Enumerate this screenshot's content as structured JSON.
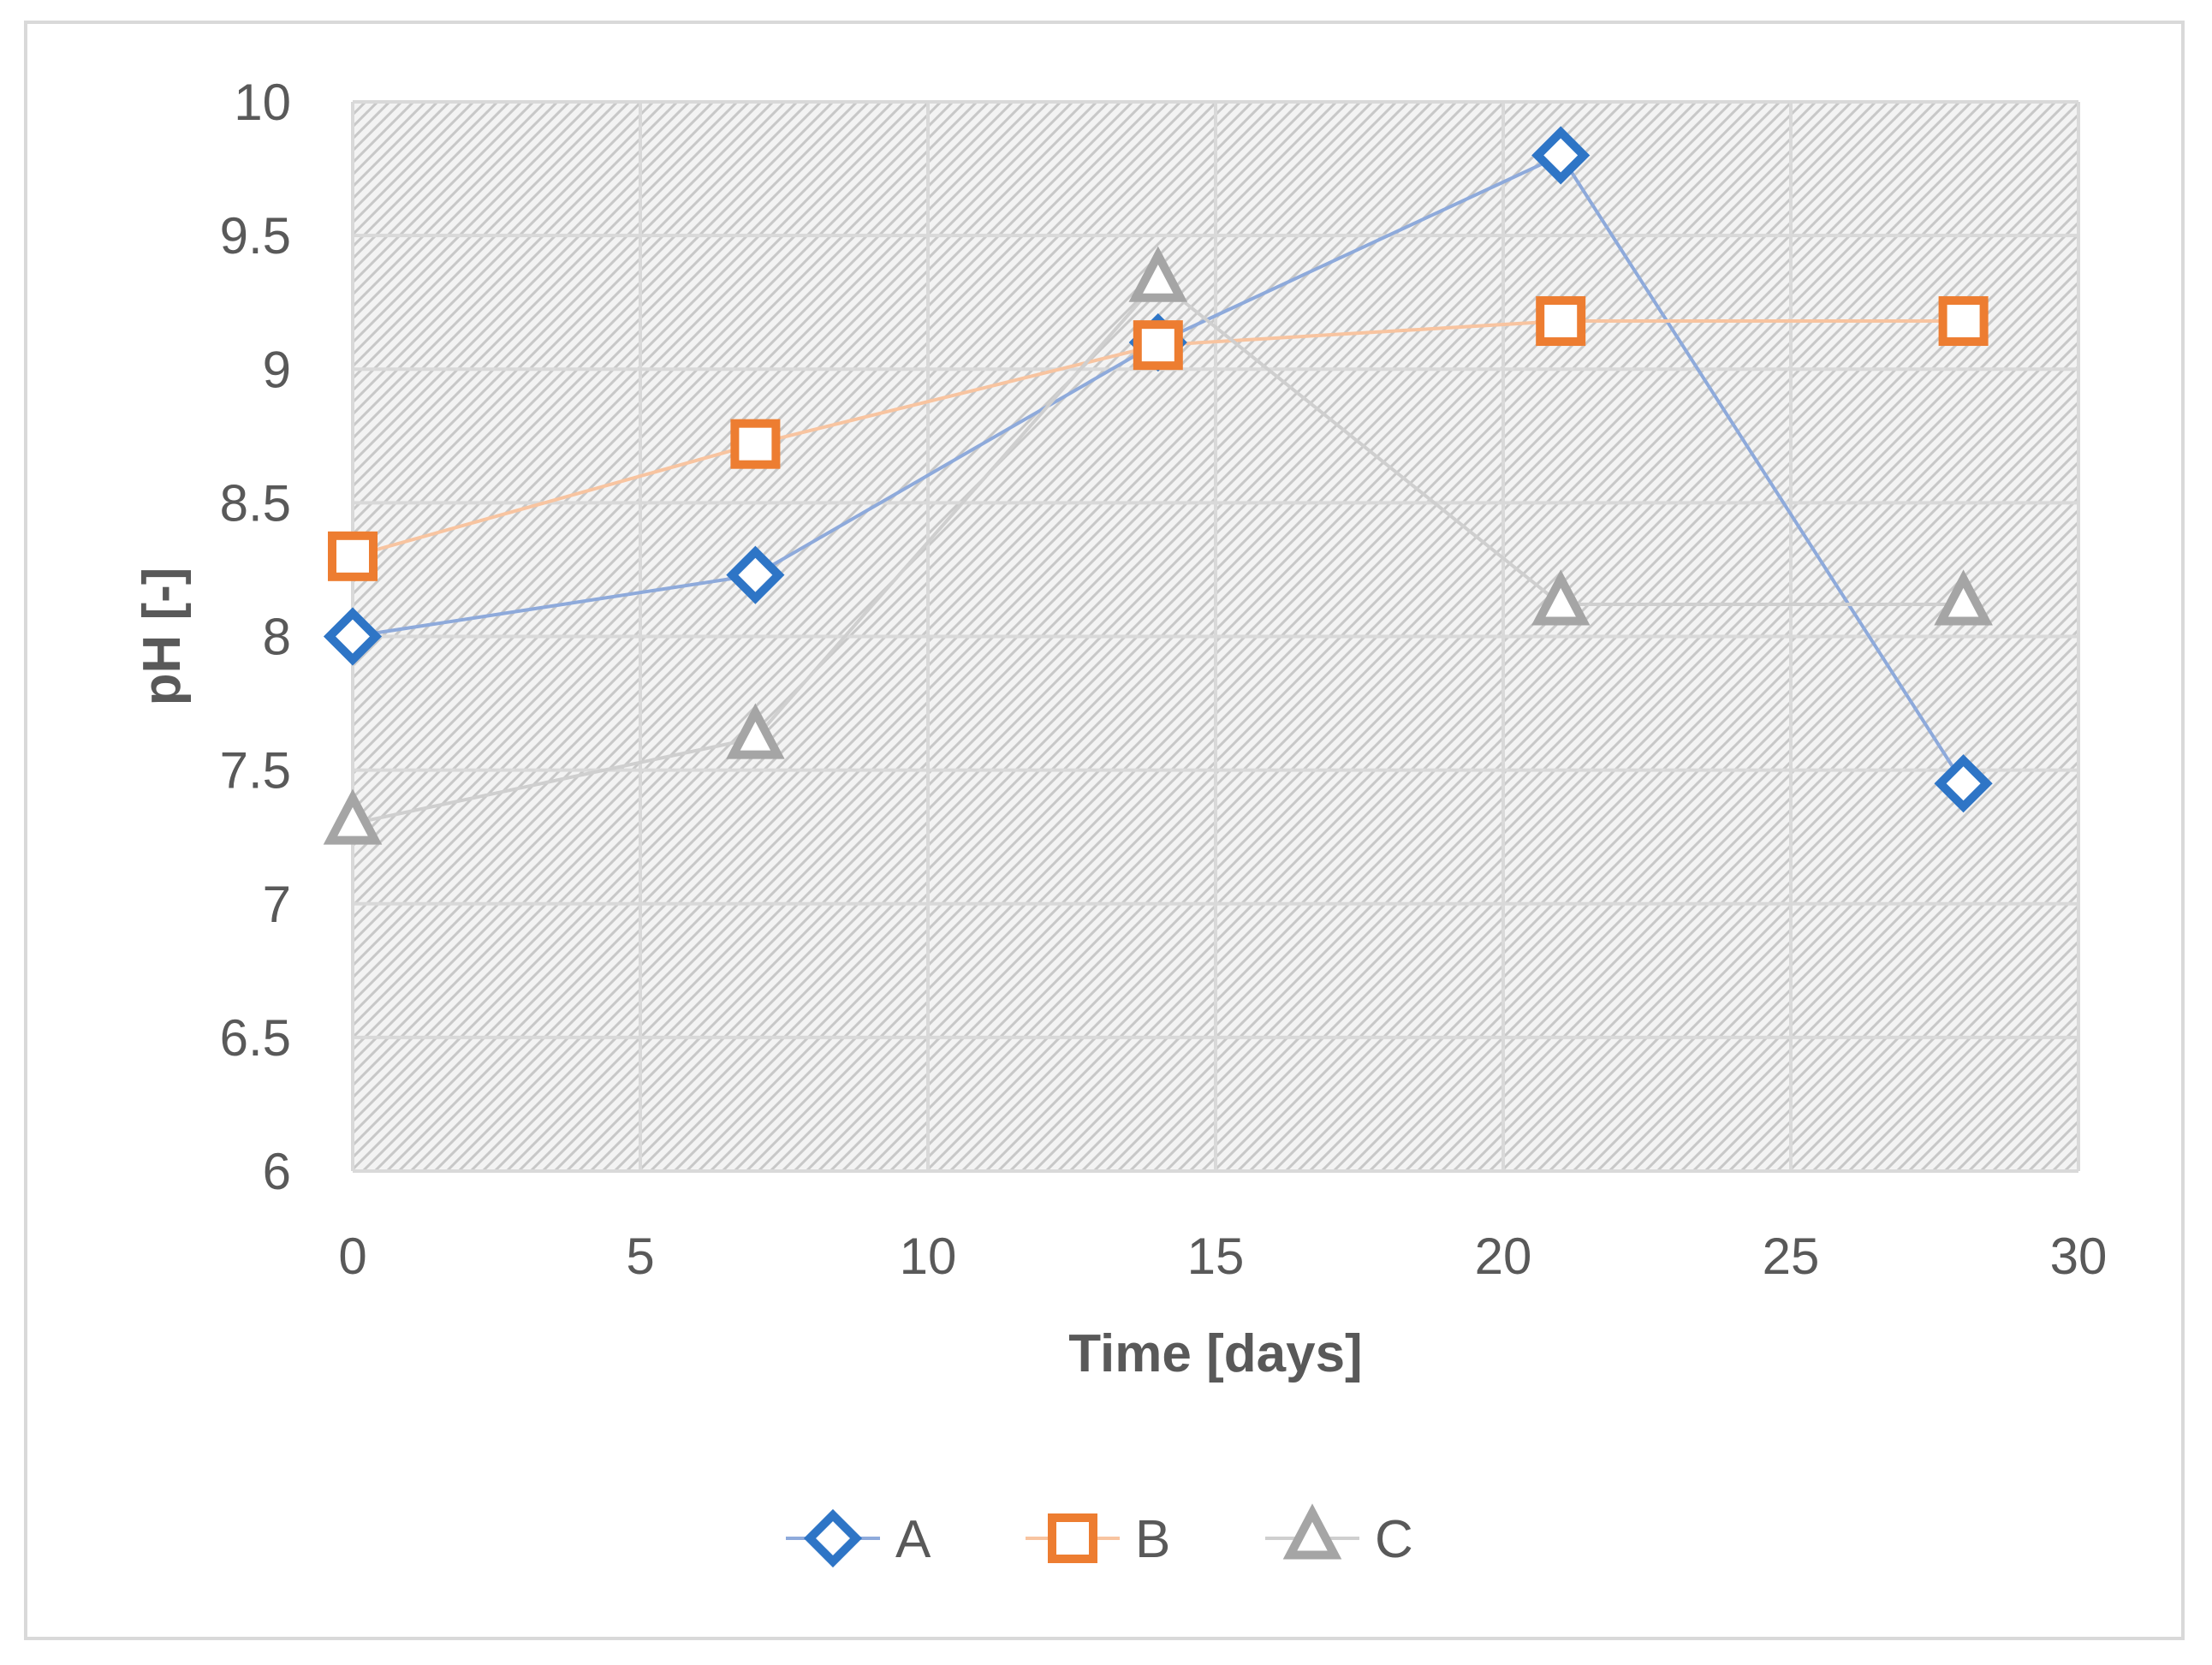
{
  "chart_data": {
    "type": "line",
    "title": "",
    "xlabel": "Time [days]",
    "ylabel": "pH [-]",
    "xlim": [
      0,
      30
    ],
    "ylim": [
      6,
      10
    ],
    "xticks": [
      0,
      5,
      10,
      15,
      20,
      25,
      30
    ],
    "yticks": [
      6,
      6.5,
      7,
      7.5,
      8,
      8.5,
      9,
      9.5,
      10
    ],
    "xtick_labels": [
      "0",
      "5",
      "10",
      "15",
      "20",
      "25",
      "30"
    ],
    "ytick_labels": [
      "6",
      "6.5",
      "7",
      "7.5",
      "8",
      "8.5",
      "9",
      "9.5",
      "10"
    ],
    "grid": true,
    "legend_position": "bottom-center",
    "x": [
      0,
      7,
      14,
      21,
      28
    ],
    "series": [
      {
        "name": "A",
        "marker": "diamond",
        "line_color": "#8eaadb",
        "marker_color": "#2e75c6",
        "values": [
          8.0,
          8.23,
          9.1,
          9.8,
          7.45
        ]
      },
      {
        "name": "B",
        "marker": "square",
        "line_color": "#f8c4a0",
        "marker_color": "#ed7d31",
        "values": [
          8.3,
          8.72,
          9.09,
          9.18,
          9.18
        ]
      },
      {
        "name": "C",
        "marker": "triangle",
        "line_color": "#cfcfcf",
        "marker_color": "#a5a5a5",
        "values": [
          7.3,
          7.62,
          9.33,
          8.12,
          8.12
        ]
      }
    ]
  }
}
